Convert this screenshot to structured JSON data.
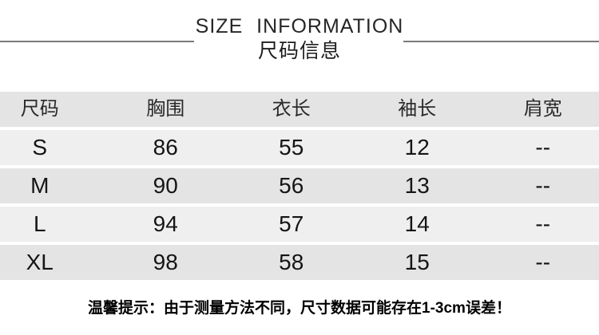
{
  "chart_data": {
    "type": "table",
    "title": "SIZE INFORMATION",
    "subtitle": "尺码信息",
    "columns": [
      "尺码",
      "胸围",
      "衣长",
      "袖长",
      "肩宽"
    ],
    "rows": [
      [
        "S",
        86,
        55,
        12,
        "--"
      ],
      [
        "M",
        90,
        56,
        13,
        "--"
      ],
      [
        "L",
        94,
        57,
        14,
        "--"
      ],
      [
        "XL",
        98,
        58,
        15,
        "--"
      ]
    ],
    "note": "温馨提示：由于测量方法不同，尺寸数据可能存在1-3cm误差！",
    "layout_hints": {
      "legend": "none",
      "grid": "off",
      "row_striping": "alternating"
    }
  },
  "colors": {
    "header_row_bg": "#e4e4e4",
    "row_light_bg": "#efefef",
    "row_dark_bg": "#e4e4e4",
    "divider_line": "#7b7b7b",
    "text": "#1a1a1a"
  }
}
